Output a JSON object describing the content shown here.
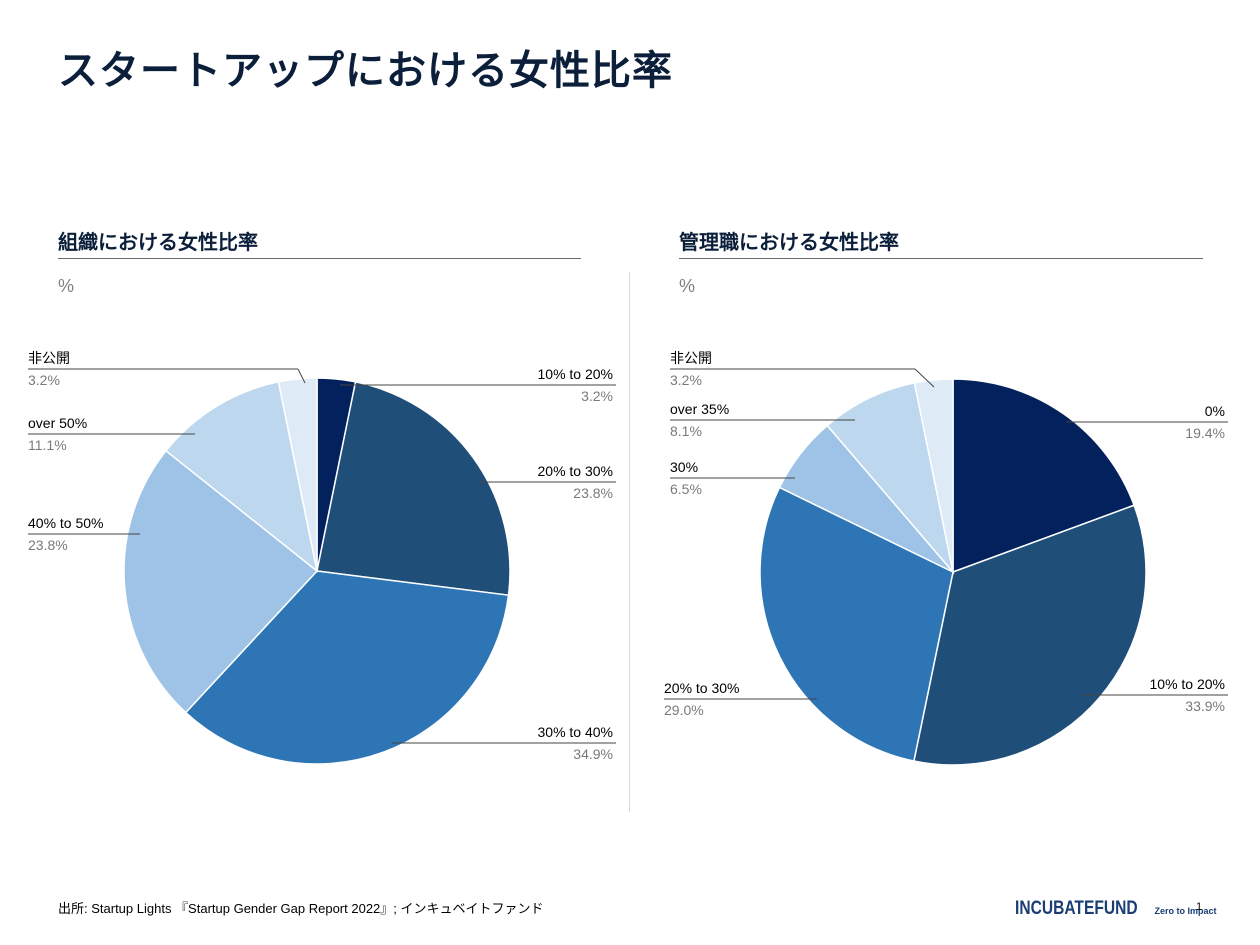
{
  "page": {
    "title": "スタートアップにおける女性比率",
    "footer": "出所:  Startup Lights 『Startup Gender Gap Report 2022』; インキュベイトファンド",
    "logo_main": "INCUBATEFUND",
    "logo_sub": "Zero to Impact",
    "page_number": "1"
  },
  "chart_data": [
    {
      "type": "pie",
      "title": "組織における女性比率",
      "unit": "%",
      "start_angle_deg": 0,
      "direction": "clockwise",
      "slices": [
        {
          "label": "10% to 20%",
          "value": 3.2,
          "value_label": "3.2%",
          "color": "#03215c"
        },
        {
          "label": "20% to 30%",
          "value": 23.8,
          "value_label": "23.8%",
          "color": "#1f4e79"
        },
        {
          "label": "30% to 40%",
          "value": 34.9,
          "value_label": "34.9%",
          "color": "#2e75b6"
        },
        {
          "label": "40% to 50%",
          "value": 23.8,
          "value_label": "23.8%",
          "color": "#9fc3e6"
        },
        {
          "label": "over 50%",
          "value": 11.1,
          "value_label": "11.1%",
          "color": "#bdd7ee"
        },
        {
          "label": "非公開",
          "value": 3.2,
          "value_label": "3.2%",
          "color": "#deebf7"
        }
      ]
    },
    {
      "type": "pie",
      "title": "管理職における女性比率",
      "unit": "%",
      "start_angle_deg": 0,
      "direction": "clockwise",
      "slices": [
        {
          "label": "0%",
          "value": 19.4,
          "value_label": "19.4%",
          "color": "#03215c"
        },
        {
          "label": "10% to 20%",
          "value": 33.9,
          "value_label": "33.9%",
          "color": "#1f4e79"
        },
        {
          "label": "20% to 30%",
          "value": 29.0,
          "value_label": "29.0%",
          "color": "#2e75b6"
        },
        {
          "label": "30%",
          "value": 6.5,
          "value_label": "6.5%",
          "color": "#9fc3e6"
        },
        {
          "label": "over 35%",
          "value": 8.1,
          "value_label": "8.1%",
          "color": "#bdd7ee"
        },
        {
          "label": "非公開",
          "value": 3.2,
          "value_label": "3.2%",
          "color": "#deebf7"
        }
      ]
    }
  ]
}
